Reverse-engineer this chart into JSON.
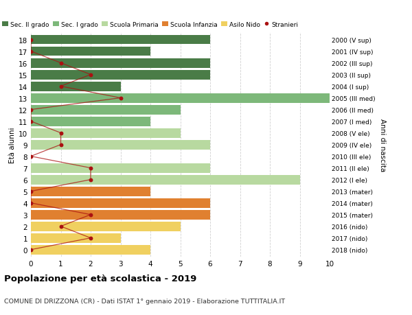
{
  "ages": [
    18,
    17,
    16,
    15,
    14,
    13,
    12,
    11,
    10,
    9,
    8,
    7,
    6,
    5,
    4,
    3,
    2,
    1,
    0
  ],
  "right_labels": [
    "2000 (V sup)",
    "2001 (IV sup)",
    "2002 (III sup)",
    "2003 (II sup)",
    "2004 (I sup)",
    "2005 (III med)",
    "2006 (II med)",
    "2007 (I med)",
    "2008 (V ele)",
    "2009 (IV ele)",
    "2010 (III ele)",
    "2011 (II ele)",
    "2012 (I ele)",
    "2013 (mater)",
    "2014 (mater)",
    "2015 (mater)",
    "2016 (nido)",
    "2017 (nido)",
    "2018 (nido)"
  ],
  "bar_values": [
    6,
    4,
    6,
    6,
    3,
    10,
    5,
    4,
    5,
    6,
    0,
    6,
    9,
    4,
    6,
    6,
    5,
    3,
    4
  ],
  "bar_colors": [
    "#4a7c47",
    "#4a7c47",
    "#4a7c47",
    "#4a7c47",
    "#4a7c47",
    "#7db87a",
    "#7db87a",
    "#7db87a",
    "#b8d9a0",
    "#b8d9a0",
    "#b8d9a0",
    "#b8d9a0",
    "#b8d9a0",
    "#e08030",
    "#e08030",
    "#e08030",
    "#f0d060",
    "#f0d060",
    "#f0d060"
  ],
  "stranieri_values": [
    0,
    0,
    1,
    2,
    1,
    3,
    0,
    0,
    1,
    1,
    0,
    2,
    2,
    0,
    0,
    2,
    1,
    2,
    0
  ],
  "legend_labels": [
    "Sec. II grado",
    "Sec. I grado",
    "Scuola Primaria",
    "Scuola Infanzia",
    "Asilo Nido",
    "Stranieri"
  ],
  "legend_colors": [
    "#4a7c47",
    "#7db87a",
    "#b8d9a0",
    "#e08030",
    "#f0d060",
    "#a02020"
  ],
  "ylabel": "Età alunni",
  "right_ylabel": "Anni di nascita",
  "title": "Popolazione per età scolastica - 2019",
  "subtitle": "COMUNE DI DRIZZONA (CR) - Dati ISTAT 1° gennaio 2019 - Elaborazione TUTTITALIA.IT",
  "xlim": [
    0,
    10
  ],
  "xticks": [
    0,
    1,
    2,
    3,
    4,
    5,
    6,
    7,
    8,
    9,
    10
  ],
  "bg_color": "#ffffff",
  "grid_color": "#d0d0d0",
  "bar_height": 0.82,
  "stranieri_color": "#aa1111",
  "stranieri_line_color": "#aa1111"
}
